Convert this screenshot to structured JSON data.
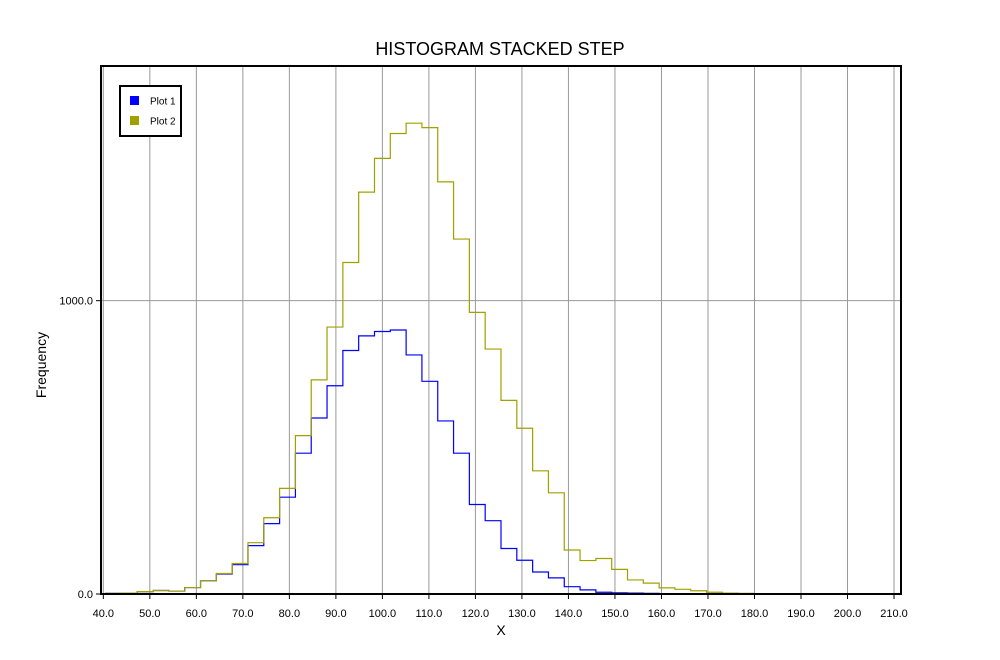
{
  "chart_data": {
    "type": "histogram-step-stacked",
    "title": "HISTOGRAM STACKED STEP",
    "xlabel": "X",
    "ylabel": "Frequency",
    "xlim": [
      39.5,
      211.5
    ],
    "ylim": [
      0,
      1800
    ],
    "x_ticks": [
      40,
      50,
      60,
      70,
      80,
      90,
      100,
      110,
      120,
      130,
      140,
      150,
      160,
      170,
      180,
      190,
      200,
      210
    ],
    "x_tick_labels": [
      "40.0",
      "50.0",
      "60.0",
      "70.0",
      "80.0",
      "90.0",
      "100.0",
      "110.0",
      "120.0",
      "130.0",
      "140.0",
      "150.0",
      "160.0",
      "170.0",
      "180.0",
      "190.0",
      "200.0",
      "210.0"
    ],
    "y_ticks": [
      0,
      1000
    ],
    "y_tick_labels": [
      "0.0",
      "1000.0"
    ],
    "grid": true,
    "legend_position": "top-left",
    "bins_start": 40.5,
    "bin_width": 3.4,
    "series": [
      {
        "name": "Plot 1",
        "color": "#0000ff",
        "values": [
          2,
          3,
          8,
          12,
          10,
          22,
          45,
          68,
          100,
          165,
          240,
          330,
          480,
          600,
          710,
          830,
          880,
          895,
          900,
          815,
          725,
          590,
          480,
          305,
          250,
          155,
          115,
          75,
          55,
          25,
          14,
          6,
          4,
          3,
          2,
          1,
          1,
          1,
          0,
          0,
          0,
          0,
          0,
          0,
          0,
          0,
          0,
          0,
          0,
          0
        ]
      },
      {
        "name": "Plot 2",
        "color": "#a0a000",
        "values": [
          0,
          0,
          0,
          0,
          0,
          0,
          0,
          2,
          4,
          10,
          20,
          30,
          60,
          130,
          200,
          300,
          490,
          590,
          670,
          790,
          865,
          815,
          730,
          655,
          585,
          505,
          450,
          345,
          290,
          125,
          100,
          115,
          80,
          45,
          35,
          20,
          15,
          10,
          6,
          3,
          2,
          1,
          1,
          0,
          0,
          0,
          0,
          0,
          0,
          0
        ]
      }
    ]
  }
}
